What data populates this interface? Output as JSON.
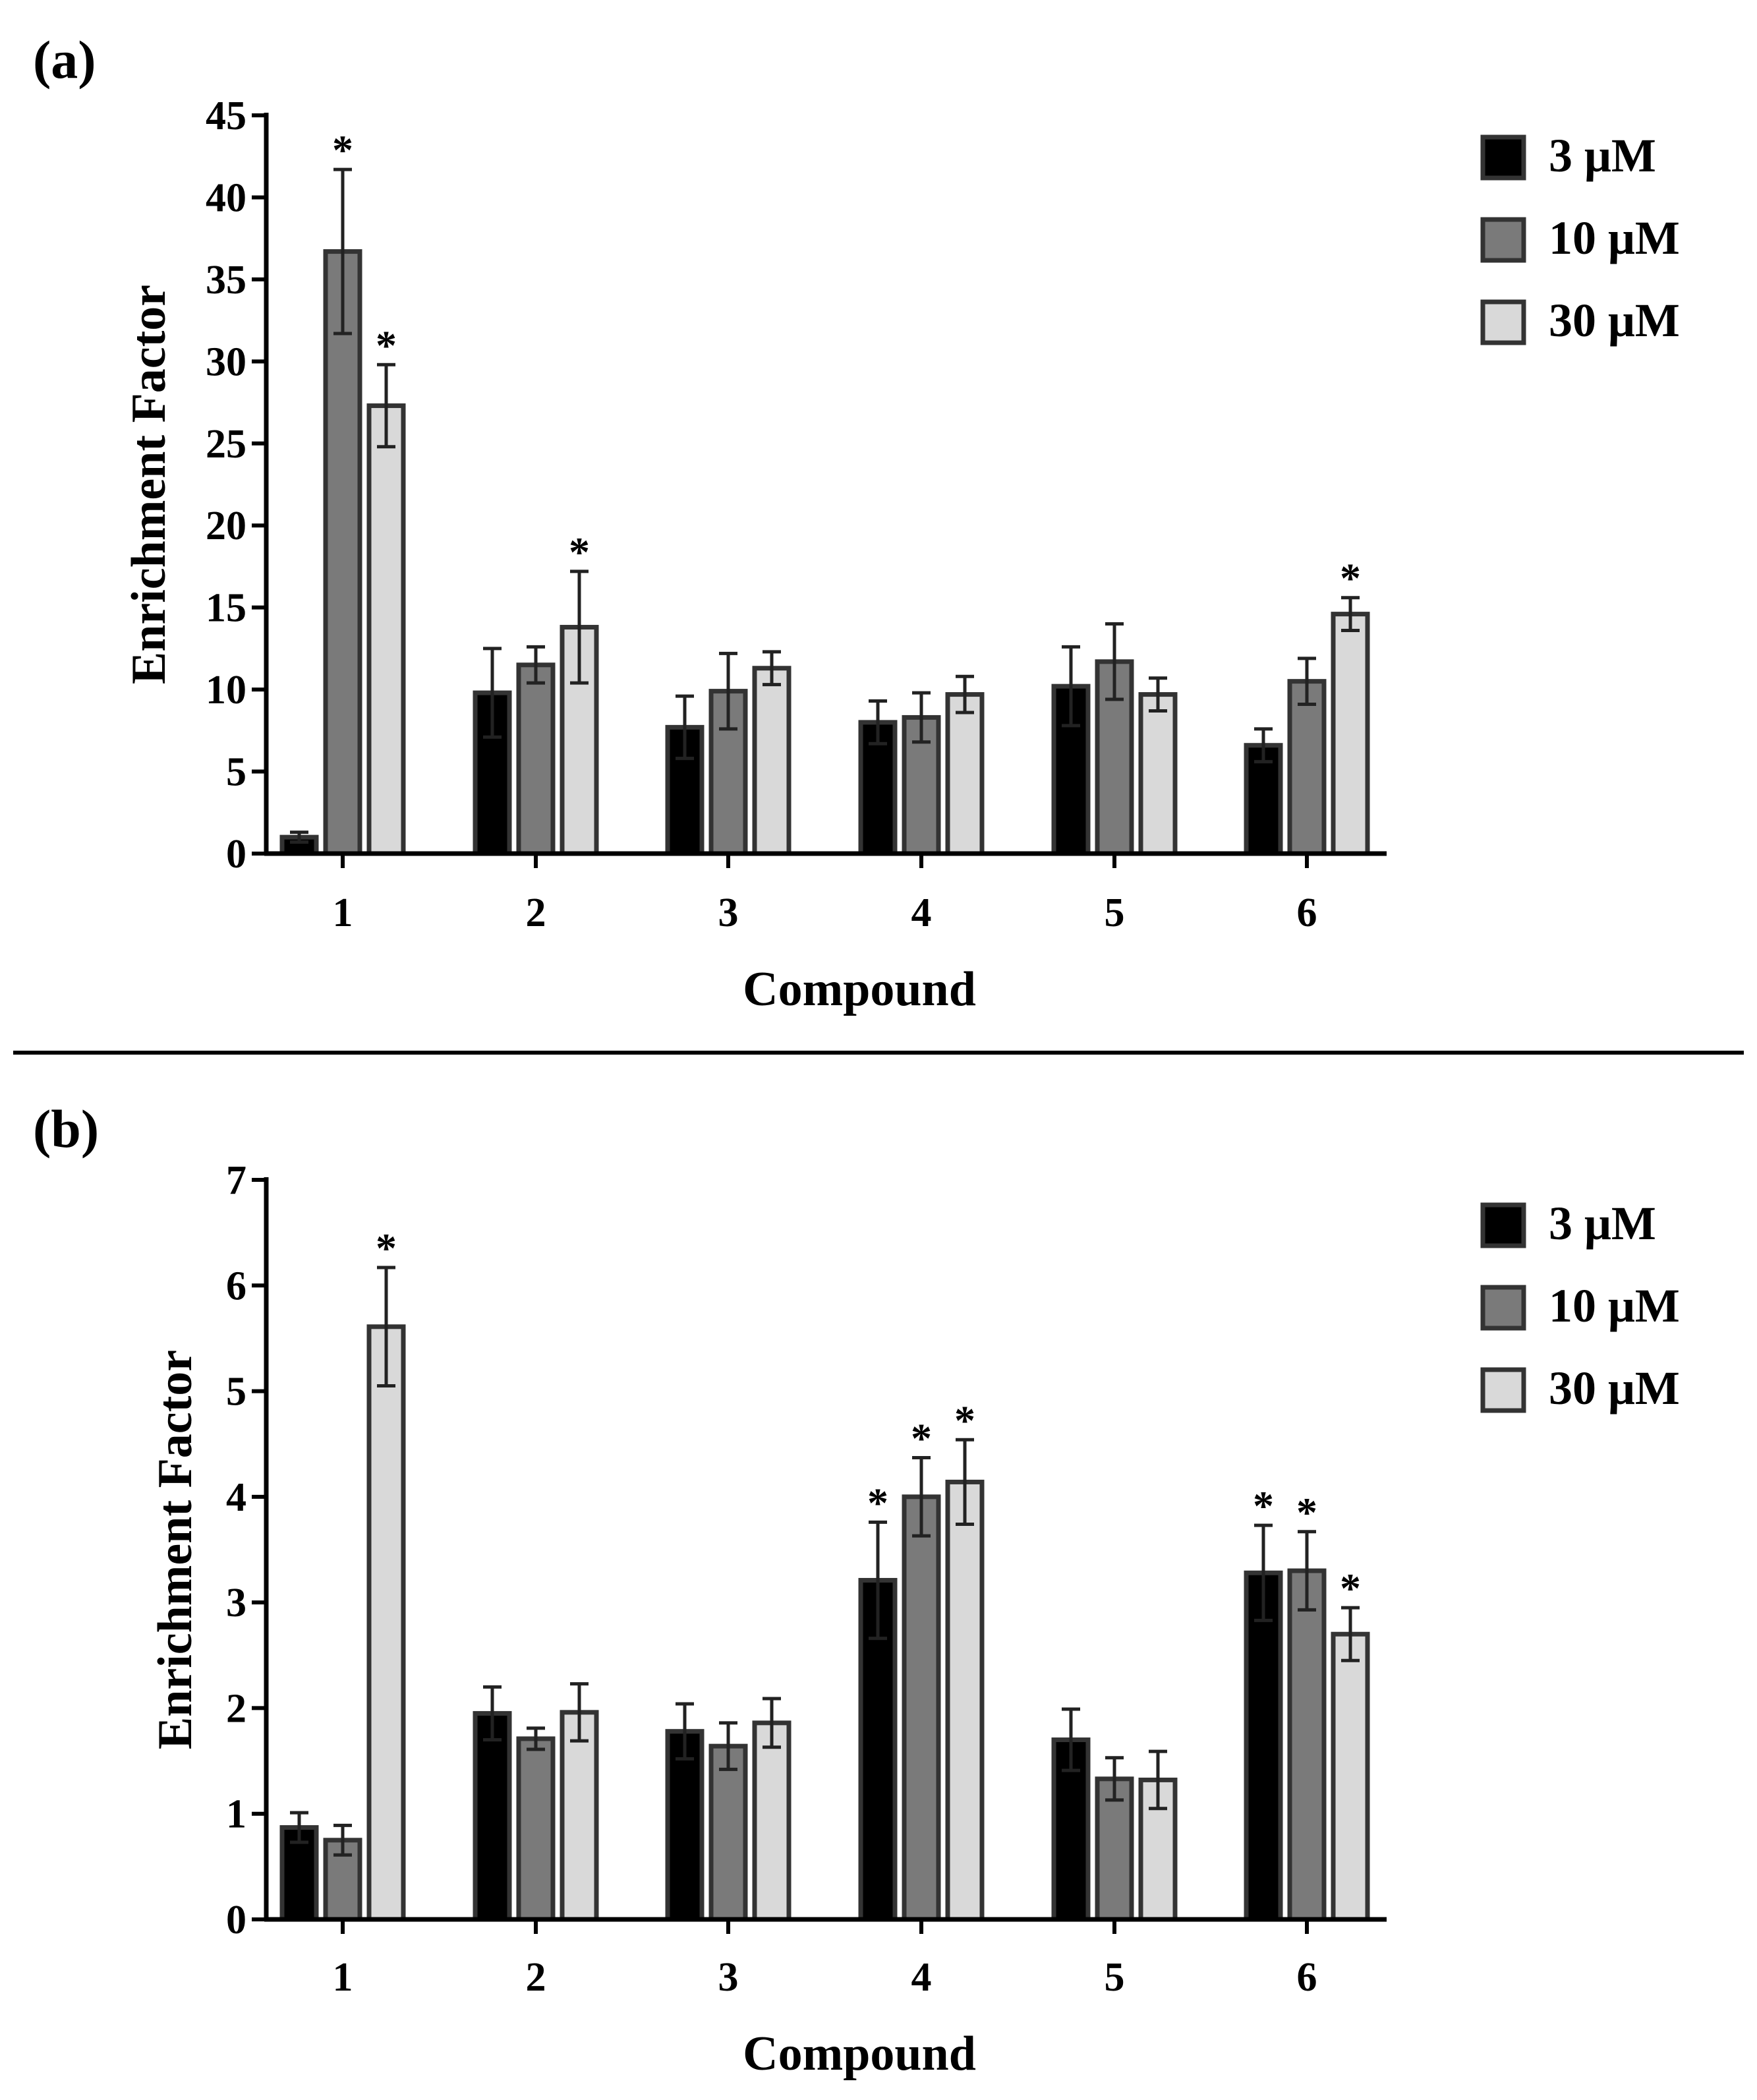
{
  "colors": {
    "conc_3uM": "#000000",
    "conc_10uM": "#7a7a7a",
    "conc_30uM": "#d9d9d9",
    "bar_outline": "#333333",
    "axis": "#000000"
  },
  "chart_data": [
    {
      "type": "bar",
      "panel_label": "(a)",
      "xlabel": "Compound",
      "ylabel": "Enrichment Factor",
      "ylim": [
        0,
        45
      ],
      "yticks": [
        0,
        5,
        10,
        15,
        20,
        25,
        30,
        35,
        40,
        45
      ],
      "ytick_labels": [
        "0",
        "5",
        "10",
        "15",
        "20",
        "25",
        "30",
        "35",
        "40",
        "45"
      ],
      "categories": [
        "1",
        "2",
        "3",
        "4",
        "5",
        "6"
      ],
      "legend_position": "top-right",
      "series": [
        {
          "name": "3 μM",
          "color_key": "conc_3uM",
          "values": [
            1.0,
            9.8,
            7.7,
            8.0,
            10.2,
            6.6
          ],
          "errors": [
            0.3,
            2.7,
            1.9,
            1.3,
            2.4,
            1.0
          ],
          "significant": [
            false,
            false,
            false,
            false,
            false,
            false
          ]
        },
        {
          "name": "10 μM",
          "color_key": "conc_10uM",
          "values": [
            36.7,
            11.5,
            9.9,
            8.3,
            11.7,
            10.5
          ],
          "errors": [
            5.0,
            1.1,
            2.3,
            1.5,
            2.3,
            1.4
          ],
          "significant": [
            true,
            false,
            false,
            false,
            false,
            false
          ]
        },
        {
          "name": "30 μM",
          "color_key": "conc_30uM",
          "values": [
            27.3,
            13.8,
            11.3,
            9.7,
            9.7,
            14.6
          ],
          "errors": [
            2.5,
            3.4,
            1.0,
            1.1,
            1.0,
            1.0
          ],
          "significant": [
            true,
            true,
            false,
            false,
            false,
            true
          ]
        }
      ],
      "significance_marker": "*"
    },
    {
      "type": "bar",
      "panel_label": "(b)",
      "xlabel": "Compound",
      "ylabel": "Enrichment Factor",
      "ylim": [
        0,
        7
      ],
      "yticks": [
        0,
        1,
        2,
        3,
        4,
        5,
        6,
        7
      ],
      "ytick_labels": [
        "0",
        "1",
        "2",
        "3",
        "4",
        "5",
        "6",
        "7"
      ],
      "categories": [
        "1",
        "2",
        "3",
        "4",
        "5",
        "6"
      ],
      "legend_position": "top-right",
      "series": [
        {
          "name": "3 μM",
          "color_key": "conc_3uM",
          "values": [
            0.87,
            1.95,
            1.78,
            3.21,
            1.7,
            3.28
          ],
          "errors": [
            0.14,
            0.25,
            0.26,
            0.55,
            0.29,
            0.45
          ],
          "significant": [
            false,
            false,
            false,
            true,
            false,
            true
          ]
        },
        {
          "name": "10 μM",
          "color_key": "conc_10uM",
          "values": [
            0.75,
            1.71,
            1.64,
            4.0,
            1.33,
            3.3
          ],
          "errors": [
            0.14,
            0.1,
            0.22,
            0.37,
            0.2,
            0.37
          ],
          "significant": [
            false,
            false,
            false,
            true,
            false,
            true
          ]
        },
        {
          "name": "30 μM",
          "color_key": "conc_30uM",
          "values": [
            5.61,
            1.96,
            1.86,
            4.14,
            1.32,
            2.7
          ],
          "errors": [
            0.56,
            0.27,
            0.23,
            0.4,
            0.27,
            0.25
          ],
          "significant": [
            true,
            false,
            false,
            true,
            false,
            true
          ]
        }
      ],
      "significance_marker": "*"
    }
  ]
}
